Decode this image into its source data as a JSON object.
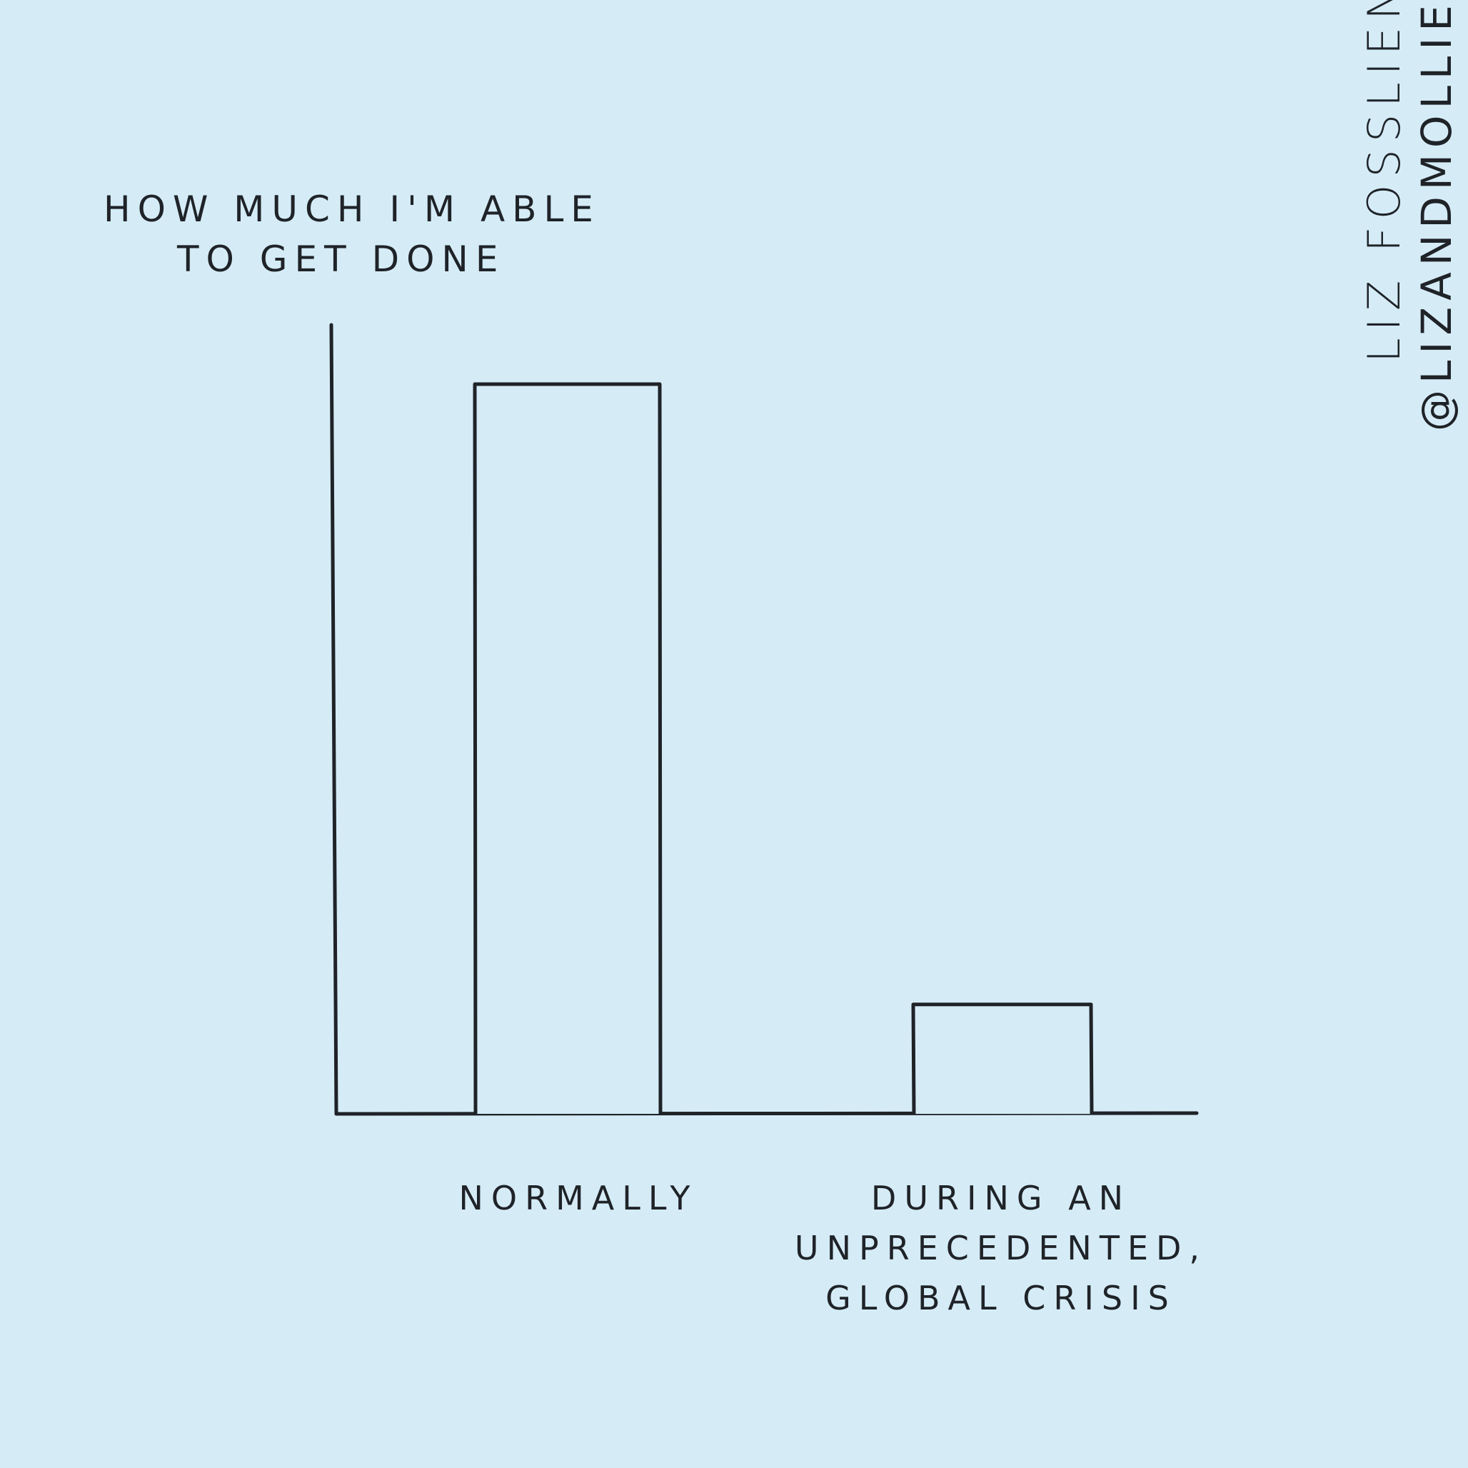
{
  "chart_data": {
    "type": "bar",
    "categories": [
      "NORMALLY",
      "DURING AN UNPRECEDENTED, GLOBAL CRISIS"
    ],
    "category_lines": [
      [
        "NORMALLY"
      ],
      [
        "DURING AN",
        "UNPRECEDENTED,",
        "GLOBAL CRISIS"
      ]
    ],
    "values": [
      100,
      15
    ],
    "ylabel_lines": [
      "HOW MUCH I'M ABLE",
      "TO GET DONE"
    ],
    "ylim": [
      0,
      108
    ],
    "grid": false,
    "bar_fill": "#d5ecf7",
    "line_color": "#1f2328"
  },
  "credits": {
    "name": "LIZ FOSSLIEN",
    "handle": "@LIZANDMOLLIE"
  },
  "colors": {
    "background": "#d5ecf7",
    "ink": "#1f2328"
  }
}
